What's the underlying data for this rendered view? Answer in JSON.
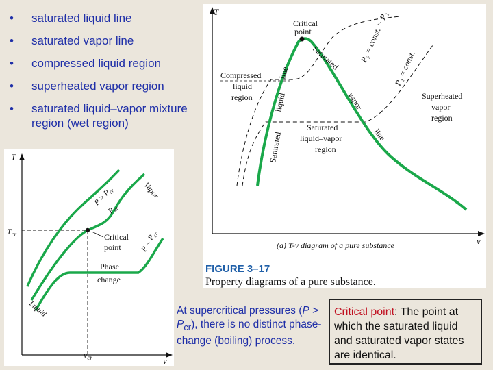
{
  "bullets": [
    "saturated liquid line",
    "saturated vapor line",
    "compressed liquid region",
    "superheated vapor region",
    "saturated liquid–vapor mixture region (wet region)"
  ],
  "bullet_symbol": "•",
  "main_diagram": {
    "y_axis": "T",
    "x_axis": "v",
    "labels": {
      "critical_point": [
        "Critical",
        "point"
      ],
      "compressed": [
        "Compressed",
        "liquid",
        "region"
      ],
      "superheated": [
        "Superheated",
        "vapor",
        "region"
      ],
      "wet": [
        "Saturated",
        "liquid–vapor",
        "region"
      ],
      "saturated_liquid_line": [
        "Saturated",
        "liquid",
        "line"
      ],
      "saturated_vapor_line": [
        "Saturated",
        "vapor",
        "line"
      ],
      "p2": "P₂ = const. > P₁",
      "p1": "P₁ = const."
    },
    "caption": "(a) T-v diagram of a pure substance",
    "figure_number": "FIGURE 3–17",
    "figure_caption": "Property diagrams of a pure substance."
  },
  "small_diagram": {
    "y_axis": "T",
    "x_axis": "v",
    "t_cr": "T",
    "t_cr_sub": "cr",
    "v_cr": "v",
    "v_cr_sub": "cr",
    "labels": {
      "p_gt": "P > P",
      "p_gt_sub": "cr",
      "p_cr": "P",
      "p_cr_sub": "cr",
      "p_lt": "P < P",
      "p_lt_sub": "cr",
      "vapor": "Vapor",
      "liquid": "Liquid",
      "critical_point": [
        "Critical",
        "point"
      ],
      "phase_change": [
        "Phase",
        "change"
      ]
    }
  },
  "note": {
    "before": "At supercritical pressures (",
    "p": "P",
    "gt": " > ",
    "pcr": "P",
    "pcr_sub": "cr",
    "after": "), there is no distinct phase-change (boiling) process."
  },
  "callout": {
    "term": "Critical point",
    "text": ": The point at which the saturated liquid and saturated vapor states are identical."
  },
  "colors": {
    "bullet_text": "#1f2fa8",
    "curve_green": "#1aa84a",
    "term_red": "#c01020",
    "figure_label": "#1f5fa8"
  }
}
